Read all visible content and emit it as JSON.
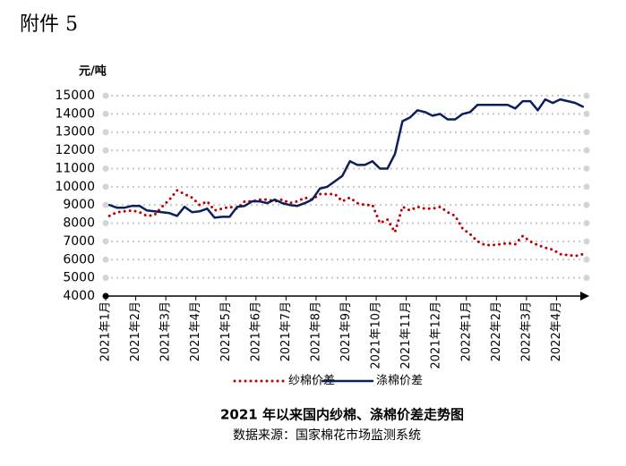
{
  "header": "附件 5",
  "chart_data": {
    "type": "line",
    "title": "2021 年以来国内纱棉、涤棉价差走势图",
    "source": "数据来源：国家棉花市场监测系统",
    "y_label": "元/吨",
    "categories": [
      "2021年1月",
      null,
      null,
      null,
      "2021年2月",
      null,
      null,
      null,
      "2021年3月",
      null,
      null,
      null,
      "2021年4月",
      null,
      null,
      null,
      "2021年5月",
      null,
      null,
      null,
      "2021年6月",
      null,
      null,
      null,
      "2021年7月",
      null,
      null,
      null,
      "2021年8月",
      null,
      null,
      null,
      "2021年9月",
      null,
      null,
      null,
      "2021年10月",
      null,
      null,
      null,
      "2021年11月",
      null,
      null,
      null,
      "2021年12月",
      null,
      null,
      null,
      "2022年1月",
      null,
      null,
      null,
      "2022年2月",
      null,
      null,
      null,
      "2022年3月",
      null,
      null,
      null,
      "2022年4月",
      null,
      null,
      null
    ],
    "series": [
      {
        "name": "纱棉价差",
        "color": "#c00000",
        "style": "dotted",
        "values": [
          8400,
          8600,
          8650,
          8700,
          8600,
          8400,
          8450,
          8900,
          9300,
          9800,
          9600,
          9400,
          9000,
          9200,
          8700,
          8800,
          8900,
          8800,
          9200,
          9200,
          9300,
          9300,
          9200,
          9300,
          9100,
          9200,
          9400,
          9300,
          9600,
          9600,
          9600,
          9200,
          9400,
          9100,
          9000,
          9000,
          8000,
          8200,
          7500,
          8900,
          8700,
          8900,
          8800,
          8800,
          8900,
          8600,
          8400,
          7700,
          7400,
          7000,
          6800,
          6800,
          6850,
          6900,
          6850,
          7300,
          7000,
          6800,
          6650,
          6550,
          6300,
          6250,
          6200,
          6300
        ]
      },
      {
        "name": "涤棉价差",
        "color": "#0c1f5c",
        "style": "solid",
        "values": [
          9000,
          8850,
          8850,
          8950,
          8950,
          8700,
          8650,
          8600,
          8550,
          8400,
          8900,
          8600,
          8650,
          8800,
          8300,
          8350,
          8350,
          8900,
          8950,
          9200,
          9200,
          9100,
          9300,
          9100,
          9000,
          8950,
          9100,
          9300,
          9900,
          10000,
          10300,
          10600,
          11400,
          11200,
          11200,
          11400,
          11000,
          11000,
          11800,
          13600,
          13800,
          14200,
          14100,
          13900,
          14000,
          13700,
          13700,
          14000,
          14100,
          14500,
          14500,
          14500,
          14500,
          14500,
          14300,
          14700,
          14700,
          14200,
          14800,
          14600,
          14800,
          14700,
          14600,
          14400
        ]
      }
    ],
    "ylim": [
      4000,
      15000
    ],
    "yticks": [
      4000,
      5000,
      6000,
      7000,
      8000,
      9000,
      10000,
      11000,
      12000,
      13000,
      14000,
      15000
    ],
    "grid": true
  }
}
